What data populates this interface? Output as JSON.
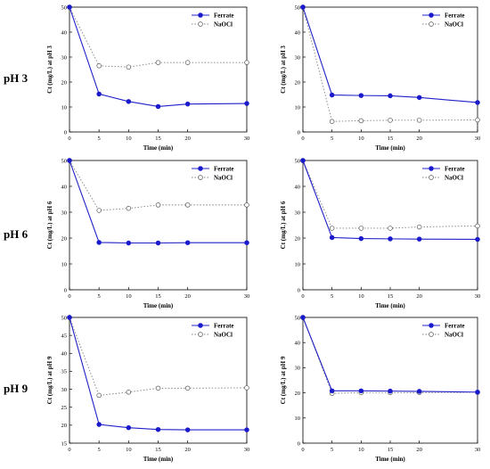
{
  "row_labels": [
    "pH 3",
    "pH 6",
    "pH 9"
  ],
  "chart_data": [
    {
      "type": "line",
      "ylabel": "Ct (mg/L) at pH 3",
      "xlabel": "Time (min)",
      "xlim": [
        0,
        30
      ],
      "ylim": [
        0,
        50
      ],
      "xticks": [
        0,
        5,
        10,
        15,
        20,
        30
      ],
      "yticks": [
        0,
        10,
        20,
        30,
        40,
        50
      ],
      "x": [
        0,
        5,
        10,
        15,
        20,
        30
      ],
      "legend": "top-right",
      "series": [
        {
          "name": "Ferrate",
          "values": [
            50,
            15.2,
            12.2,
            10.2,
            11.2,
            11.4
          ],
          "color": "#2020c8",
          "marker": "filled",
          "line": "solid"
        },
        {
          "name": "NaOCl",
          "values": [
            50,
            26.5,
            26,
            27.8,
            27.8,
            27.8
          ],
          "color": "#808080",
          "marker": "open",
          "line": "dotted"
        }
      ]
    },
    {
      "type": "line",
      "ylabel": "Ct (mg/L) at pH 3",
      "xlabel": "Time (min)",
      "xlim": [
        0,
        30
      ],
      "ylim": [
        0,
        50
      ],
      "xticks": [
        0,
        5,
        10,
        15,
        20,
        30
      ],
      "yticks": [
        0,
        10,
        20,
        30,
        40,
        50
      ],
      "x": [
        0,
        5,
        10,
        15,
        20,
        30
      ],
      "legend": "top-right",
      "series": [
        {
          "name": "Ferrate",
          "values": [
            50,
            14.8,
            14.6,
            14.5,
            13.8,
            11.8
          ],
          "color": "#2020c8",
          "marker": "filled",
          "line": "solid"
        },
        {
          "name": "NaOCl",
          "values": [
            50,
            4.2,
            4.5,
            4.7,
            4.7,
            4.8
          ],
          "color": "#808080",
          "marker": "open",
          "line": "dotted"
        }
      ]
    },
    {
      "type": "line",
      "ylabel": "Ct (mg/L) at pH 6",
      "xlabel": "Time (min)",
      "xlim": [
        0,
        30
      ],
      "ylim": [
        0,
        50
      ],
      "xticks": [
        0,
        5,
        10,
        15,
        20,
        30
      ],
      "yticks": [
        0,
        10,
        20,
        30,
        40,
        50
      ],
      "x": [
        0,
        5,
        10,
        15,
        20,
        30
      ],
      "legend": "top-right",
      "series": [
        {
          "name": "Ferrate",
          "values": [
            50,
            18.3,
            18.1,
            18.1,
            18.2,
            18.2
          ],
          "color": "#2020c8",
          "marker": "filled",
          "line": "solid"
        },
        {
          "name": "NaOCl",
          "values": [
            50,
            30.7,
            31.5,
            32.8,
            32.8,
            32.8
          ],
          "color": "#808080",
          "marker": "open",
          "line": "dotted"
        }
      ]
    },
    {
      "type": "line",
      "ylabel": "Ct (mg/L) at pH 6",
      "xlabel": "Time (min)",
      "xlim": [
        0,
        30
      ],
      "ylim": [
        0,
        50
      ],
      "xticks": [
        0,
        5,
        10,
        15,
        20,
        30
      ],
      "yticks": [
        0,
        10,
        20,
        30,
        40,
        50
      ],
      "x": [
        0,
        5,
        10,
        15,
        20,
        30
      ],
      "legend": "top-right",
      "series": [
        {
          "name": "Ferrate",
          "values": [
            50,
            20.2,
            19.8,
            19.7,
            19.6,
            19.5
          ],
          "color": "#2020c8",
          "marker": "filled",
          "line": "solid"
        },
        {
          "name": "NaOCl",
          "values": [
            50,
            23.8,
            23.8,
            23.8,
            24.3,
            24.7
          ],
          "color": "#808080",
          "marker": "open",
          "line": "dotted"
        }
      ]
    },
    {
      "type": "line",
      "ylabel": "Ct (mg/L) at pH 9",
      "xlabel": "Time (min)",
      "xlim": [
        0,
        30
      ],
      "ylim": [
        15,
        50
      ],
      "xticks": [
        0,
        5,
        10,
        15,
        20,
        30
      ],
      "yticks": [
        15,
        20,
        25,
        30,
        35,
        40,
        45,
        50
      ],
      "x": [
        0,
        5,
        10,
        15,
        20,
        30
      ],
      "legend": "top-right",
      "series": [
        {
          "name": "Ferrate",
          "values": [
            50,
            20.2,
            19.3,
            18.8,
            18.7,
            18.7
          ],
          "color": "#2020c8",
          "marker": "filled",
          "line": "solid"
        },
        {
          "name": "NaOCl",
          "values": [
            50,
            28.3,
            29.2,
            30.3,
            30.3,
            30.4
          ],
          "color": "#808080",
          "marker": "open",
          "line": "dotted"
        }
      ]
    },
    {
      "type": "line",
      "ylabel": "Ct (mg/L) at pH 9",
      "xlabel": "Time (min)",
      "xlim": [
        0,
        30
      ],
      "ylim": [
        0,
        50
      ],
      "xticks": [
        0,
        5,
        10,
        15,
        20,
        30
      ],
      "yticks": [
        0,
        10,
        20,
        30,
        40,
        50
      ],
      "x": [
        0,
        5,
        10,
        15,
        20,
        30
      ],
      "legend": "top-right",
      "series": [
        {
          "name": "Ferrate",
          "values": [
            50,
            20.8,
            20.8,
            20.7,
            20.6,
            20.3
          ],
          "color": "#2020c8",
          "marker": "filled",
          "line": "solid"
        },
        {
          "name": "NaOCl",
          "values": [
            50,
            19.8,
            20.1,
            20.1,
            20.1,
            20.2
          ],
          "color": "#808080",
          "marker": "open",
          "line": "dotted"
        }
      ]
    }
  ]
}
